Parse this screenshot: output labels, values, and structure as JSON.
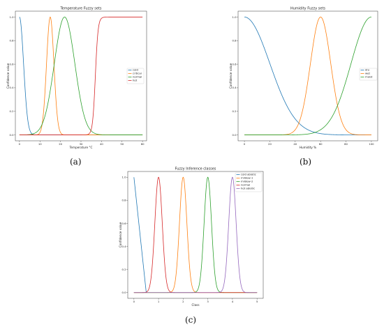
{
  "panel_labels": [
    "(a)",
    "(b)",
    "(c)"
  ],
  "chart_data": [
    {
      "type": "line",
      "title": "Temperature Fuzzy sets",
      "xlabel": "Temperature °C",
      "ylabel": "Confidence value",
      "xlim": [
        -2,
        62
      ],
      "ylim": [
        -0.05,
        1.05
      ],
      "xticks": [
        0,
        10,
        20,
        30,
        40,
        50,
        60
      ],
      "yticks": [
        0.0,
        0.2,
        0.4,
        0.6,
        0.8,
        1.0
      ],
      "xtick_labels": [
        "0",
        "10",
        "20",
        "30",
        "40",
        "50",
        "60"
      ],
      "ytick_labels": [
        "0.0",
        "0.2",
        "0.4",
        "0.6",
        "0.8",
        "1.0"
      ],
      "legend_position": "center-right",
      "series": [
        {
          "name": "cold",
          "color": "#1f77b4",
          "shape": "half-gaussian",
          "mean": 0,
          "sd": 2,
          "xmin": 0,
          "xmax": 60
        },
        {
          "name": "critical",
          "color": "#ff7f0e",
          "shape": "gaussian",
          "mean": 15,
          "sd": 1.8,
          "xmin": 0,
          "xmax": 60
        },
        {
          "name": "normal",
          "color": "#2ca02c",
          "shape": "gaussian",
          "mean": 22,
          "sd": 5,
          "xmin": 0,
          "xmax": 60
        },
        {
          "name": "hot",
          "color": "#d62728",
          "shape": "sigmoid",
          "center": 37,
          "steepness": 1.5,
          "xmin": 0,
          "xmax": 60
        }
      ]
    },
    {
      "type": "line",
      "title": "Humidity Fuzzy sets",
      "xlabel": "Humidity %",
      "ylabel": "Confidence value",
      "xlim": [
        -5,
        105
      ],
      "ylim": [
        -0.05,
        1.05
      ],
      "xticks": [
        0,
        20,
        40,
        60,
        80,
        100
      ],
      "yticks": [
        0.0,
        0.2,
        0.4,
        0.6,
        0.8,
        1.0
      ],
      "xtick_labels": [
        "0",
        "20",
        "40",
        "60",
        "80",
        "100"
      ],
      "ytick_labels": [
        "0.0",
        "0.2",
        "0.4",
        "0.6",
        "0.8",
        "1.0"
      ],
      "legend_position": "center-right",
      "series": [
        {
          "name": "dry",
          "color": "#1f77b4",
          "shape": "gaussian",
          "mean": 0,
          "sd": 20,
          "xmin": 0,
          "xmax": 100
        },
        {
          "name": "wet",
          "color": "#ff7f0e",
          "shape": "gaussian",
          "mean": 60,
          "sd": 8,
          "xmin": 0,
          "xmax": 100
        },
        {
          "name": "moist",
          "color": "#2ca02c",
          "shape": "gaussian",
          "mean": 100,
          "sd": 16,
          "xmin": 0,
          "xmax": 100
        }
      ]
    },
    {
      "type": "line",
      "title": "Fuzzy Inference classes",
      "xlabel": "Class",
      "ylabel": "Confidence value",
      "xlim": [
        -0.25,
        5.25
      ],
      "ylim": [
        -0.05,
        1.05
      ],
      "xticks": [
        0,
        1,
        2,
        3,
        4,
        5
      ],
      "yticks": [
        0.0,
        0.2,
        0.4,
        0.6,
        0.8,
        1.0
      ],
      "xtick_labels": [
        "0",
        "1",
        "2",
        "3",
        "4",
        "5"
      ],
      "ytick_labels": [
        "0.0",
        "0.2",
        "0.4",
        "0.6",
        "0.8",
        "1.0"
      ],
      "legend_position": "top-right",
      "series": [
        {
          "name": "cold abiotic",
          "color": "#1f77b4",
          "shape": "linear",
          "points": [
            [
              0,
              1.0
            ],
            [
              0.5,
              0.0
            ]
          ]
        },
        {
          "name": "mildew-1",
          "color": "#ff7f0e",
          "shape": "gaussian",
          "mean": 2,
          "sd": 0.15,
          "xmin": 0,
          "xmax": 5
        },
        {
          "name": "mildew-2",
          "color": "#2ca02c",
          "shape": "gaussian",
          "mean": 3,
          "sd": 0.15,
          "xmin": 0,
          "xmax": 5
        },
        {
          "name": "normal",
          "color": "#d62728",
          "shape": "gaussian",
          "mean": 1,
          "sd": 0.15,
          "xmin": 0,
          "xmax": 5
        },
        {
          "name": "hot abiotic",
          "color": "#9467bd",
          "shape": "gaussian",
          "mean": 4,
          "sd": 0.15,
          "xmin": 0,
          "xmax": 5
        }
      ]
    }
  ]
}
